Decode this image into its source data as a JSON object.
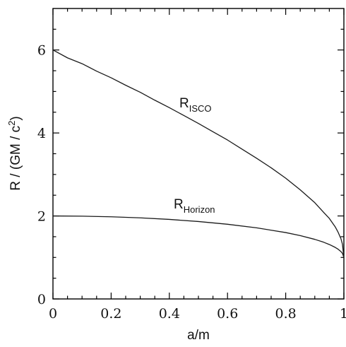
{
  "chart_data": {
    "type": "line",
    "xlabel": "a/m",
    "ylabel_main": "R / (GM / c",
    "ylabel_sup": "2",
    "ylabel_close": ")",
    "xlim": [
      0,
      1
    ],
    "ylim": [
      0,
      7
    ],
    "x_ticks": [
      0,
      0.2,
      0.4,
      0.6,
      0.8,
      1
    ],
    "x_tick_labels": [
      "0",
      "0.2",
      "0.4",
      "0.6",
      "0.8",
      "1"
    ],
    "y_ticks": [
      0,
      2,
      4,
      6
    ],
    "y_tick_labels": [
      "0",
      "2",
      "4",
      "6"
    ],
    "grid": false,
    "series": [
      {
        "name": "R_ISCO",
        "label_main": "R",
        "label_sub": "ISCO",
        "x": [
          0,
          0.05,
          0.1,
          0.15,
          0.2,
          0.25,
          0.3,
          0.35,
          0.4,
          0.45,
          0.5,
          0.55,
          0.6,
          0.65,
          0.7,
          0.75,
          0.8,
          0.85,
          0.9,
          0.93,
          0.95,
          0.97,
          0.98,
          0.99,
          0.995,
          1.0
        ],
        "y": [
          6.0,
          5.81,
          5.67,
          5.49,
          5.33,
          5.15,
          4.98,
          4.79,
          4.61,
          4.42,
          4.23,
          4.03,
          3.83,
          3.61,
          3.39,
          3.16,
          2.91,
          2.63,
          2.32,
          2.09,
          1.94,
          1.74,
          1.61,
          1.45,
          1.32,
          1.0
        ]
      },
      {
        "name": "R_Horizon",
        "label_main": "R",
        "label_sub": "Horizon",
        "x": [
          0,
          0.1,
          0.2,
          0.3,
          0.4,
          0.5,
          0.6,
          0.7,
          0.8,
          0.85,
          0.9,
          0.93,
          0.95,
          0.97,
          0.98,
          0.99,
          0.995,
          1.0
        ],
        "y": [
          2.0,
          1.995,
          1.98,
          1.954,
          1.917,
          1.866,
          1.8,
          1.714,
          1.6,
          1.527,
          1.436,
          1.368,
          1.312,
          1.243,
          1.199,
          1.141,
          1.1,
          1.0
        ]
      }
    ]
  }
}
